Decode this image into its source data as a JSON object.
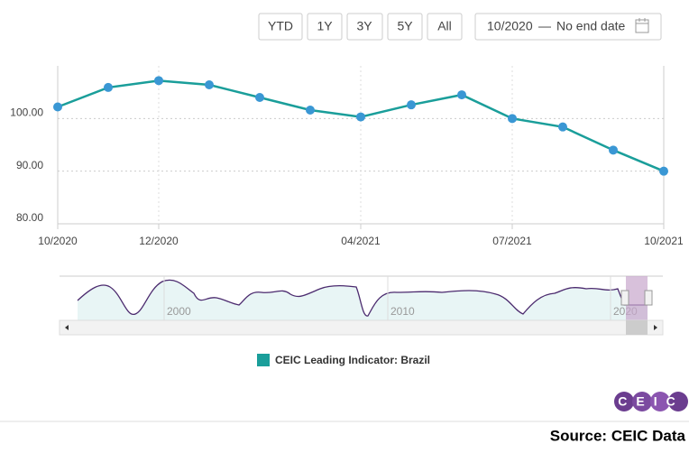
{
  "toolbar": {
    "buttons": [
      "YTD",
      "1Y",
      "3Y",
      "5Y",
      "All"
    ],
    "range_start": "10/2020",
    "range_separator": "—",
    "range_end": "No end date"
  },
  "chart_data": {
    "type": "line",
    "categories": [
      "10/2020",
      null,
      "12/2020",
      null,
      null,
      null,
      "04/2021",
      null,
      null,
      "07/2021",
      null,
      null,
      "10/2021"
    ],
    "series": [
      {
        "name": "CEIC Leading Indicator: Brazil",
        "color": "#1a9e9a",
        "values": [
          102.2,
          105.9,
          107.2,
          106.4,
          104.0,
          101.6,
          100.3,
          102.6,
          104.5,
          100.0,
          98.4,
          94.0,
          90.0
        ]
      }
    ],
    "marker_color": "#3a97d4",
    "ylim": [
      80,
      110
    ],
    "yticks": [
      {
        "value": 80,
        "label": "80.00"
      },
      {
        "value": 90,
        "label": "90.00"
      },
      {
        "value": 100,
        "label": "100.00"
      }
    ],
    "grid": true
  },
  "navigator": {
    "labels": [
      "2000",
      "2010",
      "2020"
    ]
  },
  "logo": "CEIC",
  "source": "Source: CEIC Data"
}
